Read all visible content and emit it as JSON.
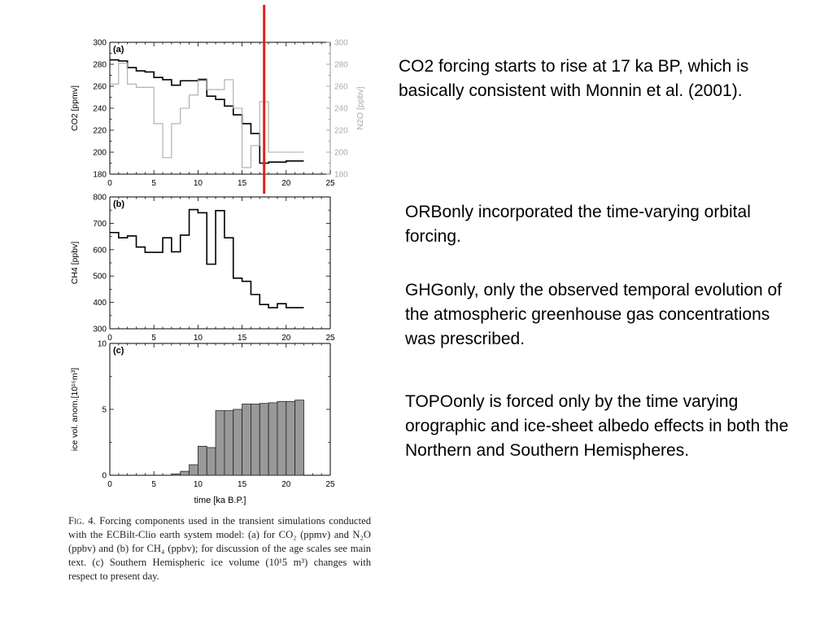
{
  "annotations": {
    "co2_note": "CO2 forcing starts to rise at 17 ka BP, which is basically consistent with Monnin et al. (2001).",
    "orbonly_note": "ORBonly incorporated the time-varying orbital forcing.",
    "ghgonly_note": "GHGonly, only the observed temporal evolution of the atmospheric greenhouse gas concentrations was prescribed.",
    "topoonly_note": "TOPOonly is forced only by the time varying orographic and ice-sheet albedo effects in both the Northern and Southern Hemispheres."
  },
  "caption": {
    "fig_label": "Fig. 4.",
    "text": " Forcing components used in the transient simulations conducted with the ECBilt-Clio earth system model: (a) for CO₂ (ppmv) and N₂O (ppbv) and (b) for CH₄ (ppbv); for discussion of the age scales see main text. (c) Southern Hemispheric ice volume (10¹5 m³) changes with respect to present day."
  },
  "marker": {
    "x": 17.5,
    "color": "#e02020"
  },
  "colors": {
    "co2": "#000000",
    "n2o": "#aaaaaa",
    "ch4": "#000000",
    "ice_fill": "#999999",
    "ice_stroke": "#222222"
  },
  "chart_data": [
    {
      "type": "line",
      "panel": "(a)",
      "xlabel": "",
      "ylabel": "CO2 [ppmv]",
      "ylabel_right": "N2O [ppbv]",
      "xlim": [
        0,
        25
      ],
      "ylim": [
        180,
        300
      ],
      "ylim_right": [
        180,
        300
      ],
      "xticks": [
        "0",
        "5",
        "10",
        "15",
        "20",
        "25"
      ],
      "yticks": [
        "180",
        "200",
        "220",
        "240",
        "260",
        "280",
        "300"
      ],
      "series": [
        {
          "name": "CO2",
          "step": true,
          "x": [
            0,
            1,
            2,
            3,
            4,
            5,
            6,
            7,
            8,
            9,
            10,
            11,
            12,
            13,
            14,
            15,
            16,
            17,
            18,
            19,
            20,
            21
          ],
          "values": [
            284,
            283,
            277,
            274,
            273,
            268,
            266,
            261,
            265,
            265,
            266,
            251,
            248,
            242,
            234,
            226,
            217,
            190,
            191,
            191,
            192,
            192
          ]
        },
        {
          "name": "N2O",
          "step": true,
          "axis": "right",
          "x": [
            0,
            1,
            2,
            3,
            4,
            5,
            6,
            7,
            8,
            9,
            10,
            11,
            12,
            13,
            14,
            15,
            16,
            17,
            18,
            19,
            20,
            21
          ],
          "values": [
            262,
            281,
            262,
            259,
            259,
            226,
            195,
            226,
            240,
            252,
            267,
            257,
            257,
            266,
            240,
            186,
            206,
            246,
            200,
            200,
            200,
            200
          ]
        }
      ]
    },
    {
      "type": "line",
      "panel": "(b)",
      "xlabel": "",
      "ylabel": "CH4 [ppbv]",
      "xlim": [
        0,
        25
      ],
      "ylim": [
        300,
        800
      ],
      "xticks": [
        "0",
        "5",
        "10",
        "15",
        "20",
        "25"
      ],
      "yticks": [
        "300",
        "400",
        "500",
        "600",
        "700",
        "800"
      ],
      "series": [
        {
          "name": "CH4",
          "step": true,
          "x": [
            0,
            1,
            2,
            3,
            4,
            5,
            6,
            7,
            8,
            9,
            10,
            11,
            12,
            13,
            14,
            15,
            16,
            17,
            18,
            19,
            20,
            21
          ],
          "values": [
            665,
            645,
            652,
            610,
            590,
            590,
            645,
            592,
            655,
            752,
            740,
            545,
            748,
            645,
            492,
            480,
            430,
            392,
            380,
            395,
            380,
            380
          ]
        }
      ]
    },
    {
      "type": "bar",
      "panel": "(c)",
      "xlabel": "time [ka B.P.]",
      "ylabel": "ice vol. anom.[10¹⁵m³]",
      "xlim": [
        0,
        25
      ],
      "ylim": [
        0,
        10
      ],
      "xticks": [
        "0",
        "5",
        "10",
        "15",
        "20",
        "25"
      ],
      "yticks": [
        "0",
        "5",
        "10"
      ],
      "x": [
        7,
        8,
        9,
        10,
        11,
        12,
        13,
        14,
        15,
        16,
        17,
        18,
        19,
        20,
        21
      ],
      "values": [
        0.1,
        0.3,
        0.8,
        2.2,
        2.1,
        4.9,
        4.9,
        5.0,
        5.4,
        5.4,
        5.45,
        5.5,
        5.6,
        5.6,
        5.7
      ]
    }
  ]
}
